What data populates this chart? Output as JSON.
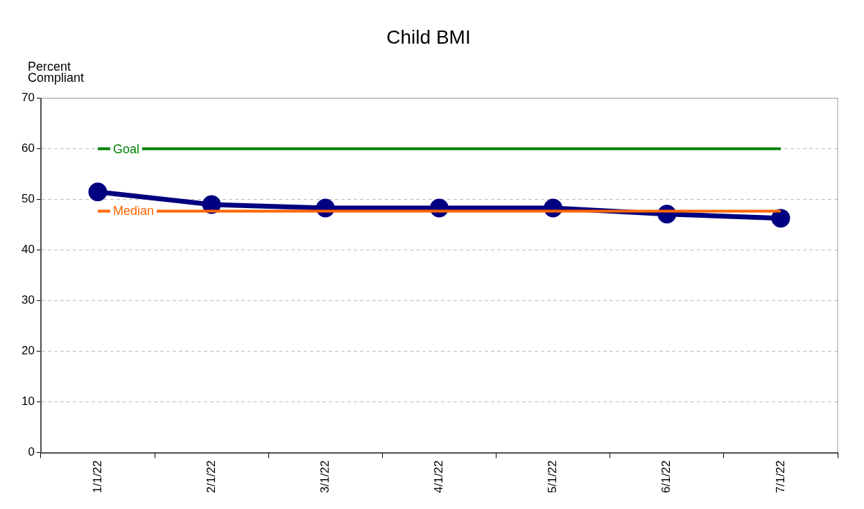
{
  "chart_data": {
    "type": "line",
    "title": "Child BMI",
    "ylabel": "Percent Compliant",
    "categories": [
      "1/1/22",
      "2/1/22",
      "3/1/22",
      "4/1/22",
      "5/1/22",
      "6/1/22",
      "7/1/22"
    ],
    "series": [
      {
        "color": "#000080",
        "values": [
          51.5,
          49.0,
          48.3,
          48.3,
          48.3,
          47.1,
          46.3
        ],
        "marker": "circle"
      },
      {
        "name": "Goal",
        "color": "#008000",
        "values": [
          60,
          60,
          60,
          60,
          60,
          60,
          60
        ],
        "marker": "none"
      },
      {
        "name": "Median",
        "color": "#ff6600",
        "values": [
          47.7,
          47.7,
          47.7,
          47.7,
          47.7,
          47.7,
          47.7
        ],
        "marker": "none"
      }
    ],
    "ylim": [
      0,
      70
    ],
    "yticks": [
      0,
      10,
      20,
      30,
      40,
      50,
      60,
      70
    ],
    "grid": "y",
    "legend": false
  }
}
